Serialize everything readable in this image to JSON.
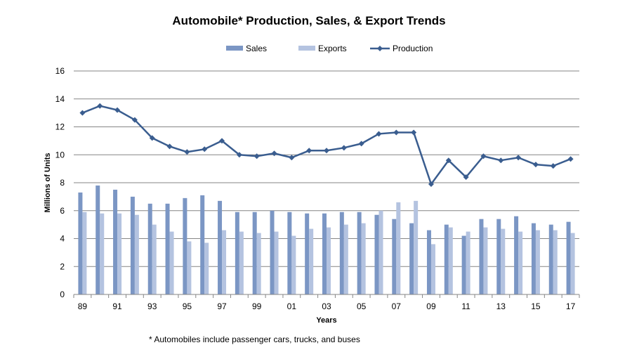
{
  "chart_data": {
    "type": "bar+line",
    "title": "Automobile* Production, Sales, & Export Trends",
    "xlabel": "Years",
    "ylabel": "Millions of Units",
    "footnote": "* Automobiles include passenger cars, trucks, and buses",
    "ylim": [
      0,
      16
    ],
    "yticks": [
      "0",
      "2",
      "4",
      "6",
      "8",
      "10",
      "12",
      "14",
      "16"
    ],
    "categories": [
      "89",
      "90",
      "91",
      "92",
      "93",
      "94",
      "95",
      "96",
      "97",
      "98",
      "99",
      "00",
      "01",
      "02",
      "03",
      "04",
      "05",
      "06",
      "07",
      "08",
      "09",
      "10",
      "11",
      "12",
      "13",
      "14",
      "15",
      "16",
      "17"
    ],
    "tick_labels": [
      "89",
      "91",
      "93",
      "95",
      "97",
      "99",
      "01",
      "03",
      "05",
      "07",
      "09",
      "11",
      "13",
      "15",
      "17"
    ],
    "legend": [
      "Sales",
      "Exports",
      "Production"
    ],
    "series": [
      {
        "name": "Sales",
        "kind": "bar",
        "color": "#7B96C4",
        "values": [
          7.3,
          7.8,
          7.5,
          7.0,
          6.5,
          6.5,
          6.9,
          7.1,
          6.7,
          5.9,
          5.9,
          6.0,
          5.9,
          5.8,
          5.8,
          5.9,
          5.9,
          5.7,
          5.4,
          5.1,
          4.6,
          5.0,
          4.2,
          5.4,
          5.4,
          5.6,
          5.1,
          5.0,
          5.2
        ]
      },
      {
        "name": "Exports",
        "kind": "bar",
        "color": "#B4C3E0",
        "values": [
          5.9,
          5.8,
          5.8,
          5.7,
          5.0,
          4.5,
          3.8,
          3.7,
          4.6,
          4.5,
          4.4,
          4.5,
          4.2,
          4.7,
          4.8,
          5.0,
          5.1,
          6.0,
          6.6,
          6.7,
          3.6,
          4.8,
          4.5,
          4.8,
          4.7,
          4.5,
          4.6,
          4.6,
          4.4
        ]
      },
      {
        "name": "Production",
        "kind": "line",
        "color": "#3A5D8F",
        "values": [
          13.0,
          13.5,
          13.2,
          12.5,
          11.2,
          10.6,
          10.2,
          10.4,
          11.0,
          10.0,
          9.9,
          10.1,
          9.8,
          10.3,
          10.3,
          10.5,
          10.8,
          11.5,
          11.6,
          11.6,
          7.9,
          9.6,
          8.4,
          9.9,
          9.6,
          9.8,
          9.3,
          9.2,
          9.7
        ]
      }
    ]
  }
}
